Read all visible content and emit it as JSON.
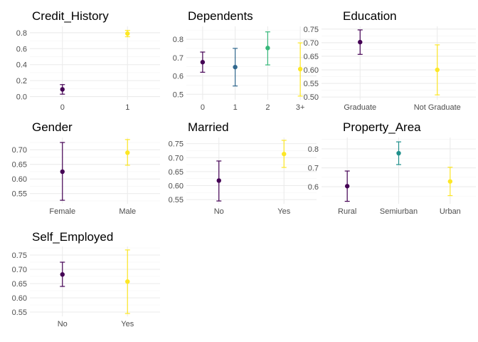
{
  "chart_data": [
    {
      "type": "errorbar",
      "title": "Credit_History",
      "categories": [
        "0",
        "1"
      ],
      "mean": [
        0.09,
        0.79
      ],
      "lower": [
        0.03,
        0.75
      ],
      "upper": [
        0.15,
        0.83
      ],
      "colors": [
        "#440154",
        "#FDE725"
      ],
      "ylim": [
        -0.04,
        0.88
      ],
      "yticks": [
        0.0,
        0.2,
        0.4,
        0.6,
        0.8
      ],
      "ytick_labels": [
        "0.0",
        "0.2",
        "0.4",
        "0.6",
        "0.8"
      ]
    },
    {
      "type": "errorbar",
      "title": "Dependents",
      "categories": [
        "0",
        "1",
        "2",
        "3+"
      ],
      "mean": [
        0.675,
        0.648,
        0.752,
        0.637
      ],
      "lower": [
        0.62,
        0.545,
        0.66,
        0.49
      ],
      "upper": [
        0.73,
        0.75,
        0.84,
        0.78
      ],
      "colors": [
        "#440154",
        "#31688E",
        "#35B779",
        "#FDE725"
      ],
      "ylim": [
        0.47,
        0.87
      ],
      "yticks": [
        0.5,
        0.6,
        0.7,
        0.8
      ],
      "ytick_labels": [
        "0.5",
        "0.6",
        "0.7",
        "0.8"
      ]
    },
    {
      "type": "errorbar",
      "title": "Education",
      "categories": [
        "Graduate",
        "Not Graduate"
      ],
      "mean": [
        0.702,
        0.6
      ],
      "lower": [
        0.657,
        0.508
      ],
      "upper": [
        0.747,
        0.692
      ],
      "colors": [
        "#440154",
        "#FDE725"
      ],
      "ylim": [
        0.49,
        0.76
      ],
      "yticks": [
        0.5,
        0.55,
        0.6,
        0.65,
        0.7,
        0.75
      ],
      "ytick_labels": [
        "0.50",
        "0.55",
        "0.60",
        "0.65",
        "0.70",
        "0.75"
      ]
    },
    {
      "type": "errorbar",
      "title": "Gender",
      "categories": [
        "Female",
        "Male"
      ],
      "mean": [
        0.625,
        0.69
      ],
      "lower": [
        0.527,
        0.647
      ],
      "upper": [
        0.725,
        0.735
      ],
      "colors": [
        "#440154",
        "#FDE725"
      ],
      "ylim": [
        0.515,
        0.742
      ],
      "yticks": [
        0.55,
        0.6,
        0.65,
        0.7
      ],
      "ytick_labels": [
        "0.55",
        "0.60",
        "0.65",
        "0.70"
      ]
    },
    {
      "type": "errorbar",
      "title": "Married",
      "categories": [
        "No",
        "Yes"
      ],
      "mean": [
        0.618,
        0.713
      ],
      "lower": [
        0.545,
        0.665
      ],
      "upper": [
        0.688,
        0.762
      ],
      "colors": [
        "#440154",
        "#FDE725"
      ],
      "ylim": [
        0.535,
        0.772
      ],
      "yticks": [
        0.55,
        0.6,
        0.65,
        0.7,
        0.75
      ],
      "ytick_labels": [
        "0.55",
        "0.60",
        "0.65",
        "0.70",
        "0.75"
      ]
    },
    {
      "type": "errorbar",
      "title": "Property_Area",
      "categories": [
        "Rural",
        "Semiurban",
        "Urban"
      ],
      "mean": [
        0.603,
        0.777,
        0.628
      ],
      "lower": [
        0.523,
        0.717,
        0.553
      ],
      "upper": [
        0.683,
        0.837,
        0.703
      ],
      "colors": [
        "#440154",
        "#21908C",
        "#FDE725"
      ],
      "ylim": [
        0.51,
        0.86
      ],
      "yticks": [
        0.6,
        0.7,
        0.8
      ],
      "ytick_labels": [
        "0.6",
        "0.7",
        "0.8"
      ]
    },
    {
      "type": "errorbar",
      "title": "Self_Employed",
      "categories": [
        "No",
        "Yes"
      ],
      "mean": [
        0.682,
        0.657
      ],
      "lower": [
        0.64,
        0.545
      ],
      "upper": [
        0.725,
        0.768
      ],
      "colors": [
        "#440154",
        "#FDE725"
      ],
      "ylim": [
        0.535,
        0.78
      ],
      "yticks": [
        0.55,
        0.6,
        0.65,
        0.7,
        0.75
      ],
      "ytick_labels": [
        "0.55",
        "0.60",
        "0.65",
        "0.70",
        "0.75"
      ]
    }
  ]
}
